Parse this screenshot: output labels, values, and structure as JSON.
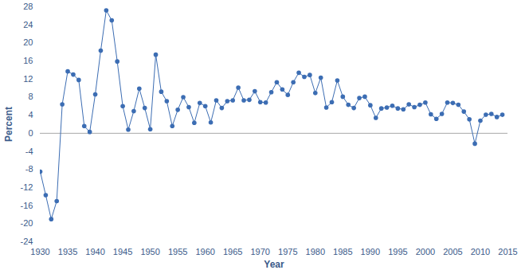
{
  "chart_data": {
    "type": "line",
    "x_label": "Year",
    "y_label": "Percent",
    "x": [
      1930,
      1931,
      1932,
      1933,
      1934,
      1935,
      1936,
      1937,
      1938,
      1939,
      1940,
      1941,
      1942,
      1943,
      1944,
      1945,
      1946,
      1947,
      1948,
      1949,
      1950,
      1951,
      1952,
      1953,
      1954,
      1955,
      1956,
      1957,
      1958,
      1959,
      1960,
      1961,
      1962,
      1963,
      1964,
      1965,
      1966,
      1967,
      1968,
      1969,
      1970,
      1971,
      1972,
      1973,
      1974,
      1975,
      1976,
      1977,
      1978,
      1979,
      1980,
      1981,
      1982,
      1983,
      1984,
      1985,
      1986,
      1987,
      1988,
      1989,
      1990,
      1991,
      1992,
      1993,
      1994,
      1995,
      1996,
      1997,
      1998,
      1999,
      2000,
      2001,
      2002,
      2003,
      2004,
      2005,
      2006,
      2007,
      2008,
      2009,
      2010,
      2011,
      2012,
      2013,
      2014
    ],
    "values": [
      -8.5,
      -13.7,
      -19,
      -15,
      6.4,
      13.7,
      13,
      11.8,
      1.6,
      0.3,
      8.6,
      18.3,
      27.2,
      25,
      15.9,
      6,
      0.8,
      4.9,
      9.9,
      5.6,
      0.9,
      17.4,
      9.2,
      7.1,
      1.6,
      5.2,
      8,
      5.8,
      2.3,
      6.7,
      6,
      2.4,
      7.3,
      5.6,
      7.1,
      7.3,
      10.1,
      7.3,
      7.4,
      9.3,
      6.9,
      6.8,
      9.1,
      11.3,
      9.7,
      8.5,
      11.3,
      13.4,
      12.5,
      12.9,
      8.9,
      12.3,
      5.7,
      6.9,
      11.7,
      8.1,
      6.3,
      5.6,
      7.8,
      8.1,
      6.2,
      3.4,
      5.5,
      5.7,
      6.1,
      5.5,
      5.3,
      6.4,
      5.8,
      6.3,
      6.8,
      4.2,
      3.2,
      4.3,
      6.8,
      6.7,
      6.3,
      4.8,
      3.1,
      -2.3,
      2.8,
      4.1,
      4.3,
      3.6,
      4.1
    ],
    "color": "#3c6db3",
    "marker": "circle",
    "line_style": "solid",
    "grid": false,
    "xlim": [
      1930,
      2015
    ],
    "xticks": [
      1930,
      1935,
      1940,
      1945,
      1950,
      1955,
      1960,
      1965,
      1970,
      1975,
      1980,
      1985,
      1990,
      1995,
      2000,
      2005,
      2010,
      2015
    ],
    "ylim": [
      -24,
      28
    ],
    "yticks": [
      -24,
      -20,
      -16,
      -12,
      -8,
      -4,
      0,
      4,
      8,
      12,
      16,
      20,
      24,
      28
    ]
  }
}
